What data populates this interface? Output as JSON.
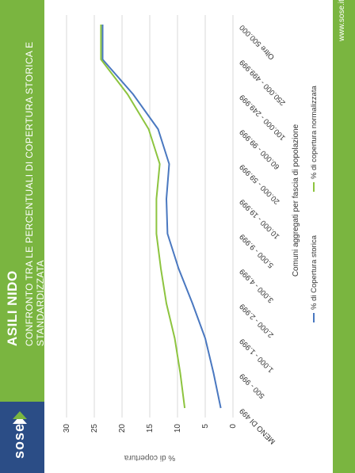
{
  "brand": {
    "logo": "sose",
    "url": "www.sose.it"
  },
  "header": {
    "title": "ASILI NIDO",
    "subtitle": "CONFRONTO TRA LE PERCENTUALI DI COPERTURA STORICA E STANDARDIZZATA"
  },
  "colors": {
    "band": "#7ab540",
    "logo_bg": "#2b4d86",
    "series_storica": "#4a78c0",
    "series_normalizzata": "#8dc43f"
  },
  "chart_data": {
    "type": "line",
    "title": "",
    "xlabel": "Comuni aggregati per fascia di popolazione",
    "ylabel": "% di copertura",
    "ylim": [
      0,
      30
    ],
    "yticks": [
      0,
      5,
      10,
      15,
      20,
      25,
      30
    ],
    "grid": true,
    "legend_position": "bottom",
    "categories": [
      "MENO DI 499",
      "500 - 999",
      "1.000 - 1.999",
      "2.000 - 2.999",
      "3.000 - 4.999",
      "5.000 - 9.999",
      "10.000 - 19.999",
      "20.000 - 59.999",
      "60.000 - 99.999",
      "100.000 - 249.999",
      "250.000 - 499.999",
      "Oltre 500.000"
    ],
    "series": [
      {
        "name": "% di Copertura storica",
        "color": "#4a78c0",
        "values": [
          2.2,
          3.5,
          5.0,
          7.3,
          9.8,
          11.8,
          12.0,
          11.5,
          13.5,
          18.0,
          23.5,
          23.5
        ]
      },
      {
        "name": "% di copertura normalizzata",
        "color": "#8dc43f",
        "values": [
          8.7,
          9.5,
          10.5,
          12.0,
          13.0,
          13.8,
          13.8,
          13.2,
          15.2,
          19.0,
          23.8,
          23.8
        ]
      }
    ]
  }
}
